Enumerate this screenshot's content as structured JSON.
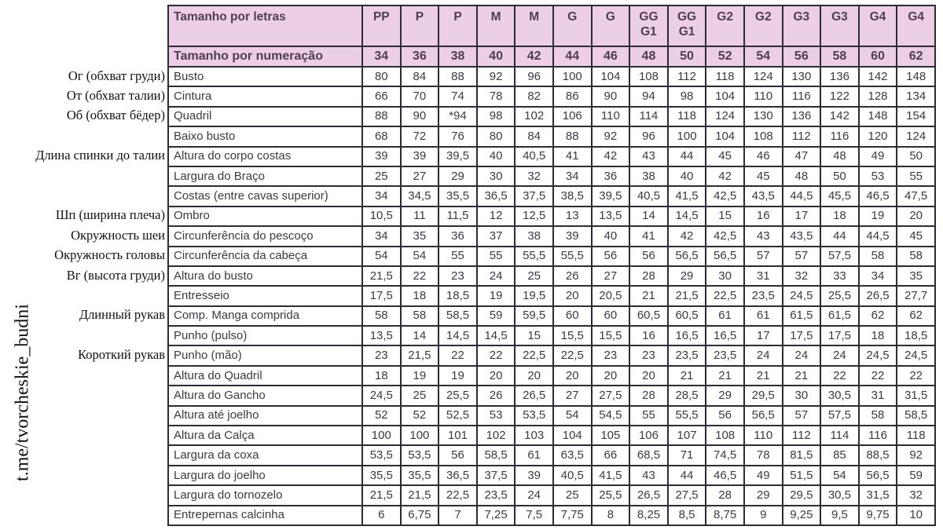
{
  "watermark": "t.me/tvorcheskie_budni",
  "colors": {
    "header_bg": "#eccfe5",
    "border": "#2e2a38"
  },
  "table": {
    "letters_label": "Tamanho por letras",
    "letters": [
      "PP",
      "P",
      "P",
      "M",
      "M",
      "G",
      "G",
      "GG\nG1",
      "GG\nG1",
      "G2",
      "G2",
      "G3",
      "G3",
      "G4",
      "G4"
    ],
    "numbers_label": "Tamanho por numeração",
    "numbers": [
      "34",
      "36",
      "38",
      "40",
      "42",
      "44",
      "46",
      "48",
      "50",
      "52",
      "54",
      "56",
      "58",
      "60",
      "62"
    ],
    "rows": [
      {
        "label": "Busto",
        "ru": "Ог (обхват груди)",
        "values": [
          "80",
          "84",
          "88",
          "92",
          "96",
          "100",
          "104",
          "108",
          "112",
          "118",
          "124",
          "130",
          "136",
          "142",
          "148"
        ]
      },
      {
        "label": "Cintura",
        "ru": "От (обхват талии)",
        "values": [
          "66",
          "70",
          "74",
          "78",
          "82",
          "86",
          "90",
          "94",
          "98",
          "104",
          "110",
          "116",
          "122",
          "128",
          "134"
        ]
      },
      {
        "label": "Quadril",
        "ru": "Об (обхват бёдер)",
        "values": [
          "88",
          "90",
          "*94",
          "98",
          "102",
          "106",
          "110",
          "114",
          "118",
          "124",
          "130",
          "136",
          "142",
          "148",
          "154"
        ]
      },
      {
        "label": "Baixo busto",
        "values": [
          "68",
          "72",
          "76",
          "80",
          "84",
          "88",
          "92",
          "96",
          "100",
          "104",
          "108",
          "112",
          "116",
          "120",
          "124"
        ]
      },
      {
        "label": "Altura do corpo costas",
        "ru": "Длина спинки до талии",
        "values": [
          "39",
          "39",
          "39,5",
          "40",
          "40,5",
          "41",
          "42",
          "43",
          "44",
          "45",
          "46",
          "47",
          "48",
          "49",
          "50"
        ]
      },
      {
        "label": "Largura do Braço",
        "values": [
          "25",
          "27",
          "29",
          "30",
          "32",
          "34",
          "36",
          "38",
          "40",
          "42",
          "45",
          "48",
          "50",
          "53",
          "55"
        ]
      },
      {
        "label": "Costas (entre cavas superior)",
        "values": [
          "34",
          "34,5",
          "35,5",
          "36,5",
          "37,5",
          "38,5",
          "39,5",
          "40,5",
          "41,5",
          "42,5",
          "43,5",
          "44,5",
          "45,5",
          "46,5",
          "47,5"
        ]
      },
      {
        "label": "Ombro",
        "ru": "Шп (ширина плеча)",
        "values": [
          "10,5",
          "11",
          "11,5",
          "12",
          "12,5",
          "13",
          "13,5",
          "14",
          "14,5",
          "15",
          "16",
          "17",
          "18",
          "19",
          "20"
        ]
      },
      {
        "label": "Circunferência do pescoço",
        "ru": "Окружность шеи",
        "values": [
          "34",
          "35",
          "36",
          "37",
          "38",
          "39",
          "40",
          "41",
          "42",
          "42,5",
          "43",
          "43,5",
          "44",
          "44,5",
          "45"
        ]
      },
      {
        "label": "Circunferência da cabeça",
        "ru": "Окружность головы",
        "values": [
          "54",
          "54",
          "55",
          "55",
          "55,5",
          "55,5",
          "56",
          "56",
          "56,5",
          "56,5",
          "57",
          "57",
          "57,5",
          "58",
          "58"
        ]
      },
      {
        "label": "Altura do busto",
        "ru": "Вг (высота груди)",
        "values": [
          "21,5",
          "22",
          "23",
          "24",
          "25",
          "26",
          "27",
          "28",
          "29",
          "30",
          "31",
          "32",
          "33",
          "34",
          "35"
        ]
      },
      {
        "label": "Entresseio",
        "values": [
          "17,5",
          "18",
          "18,5",
          "19",
          "19,5",
          "20",
          "20,5",
          "21",
          "21,5",
          "22,5",
          "23,5",
          "24,5",
          "25,5",
          "26,5",
          "27,7"
        ]
      },
      {
        "label": "Comp. Manga comprida",
        "ru": "Длинный рукав",
        "values": [
          "58",
          "58",
          "58,5",
          "59",
          "59,5",
          "60",
          "60",
          "60,5",
          "60,5",
          "61",
          "61",
          "61,5",
          "61,5",
          "62",
          "62"
        ]
      },
      {
        "label": "Punho (pulso)",
        "values": [
          "13,5",
          "14",
          "14,5",
          "14,5",
          "15",
          "15,5",
          "15,5",
          "16",
          "16,5",
          "16,5",
          "17",
          "17,5",
          "17,5",
          "18",
          "18,5"
        ]
      },
      {
        "label": "Punho (mão)",
        "ru": "Короткий рукав",
        "values": [
          "23",
          "21,5",
          "22",
          "22",
          "22,5",
          "22,5",
          "23",
          "23",
          "23,5",
          "23,5",
          "24",
          "24",
          "24",
          "24,5",
          "24,5"
        ]
      },
      {
        "label": "Altura do Quadril",
        "values": [
          "18",
          "19",
          "19",
          "20",
          "20",
          "20",
          "20",
          "20",
          "21",
          "21",
          "21",
          "21",
          "22",
          "22",
          "22"
        ]
      },
      {
        "label": "Altura do Gancho",
        "values": [
          "24,5",
          "25",
          "25,5",
          "26",
          "26,5",
          "27",
          "27,5",
          "28",
          "28,5",
          "29",
          "29,5",
          "30",
          "30,5",
          "31",
          "31,5"
        ]
      },
      {
        "label": "Altura até joelho",
        "values": [
          "52",
          "52",
          "52,5",
          "53",
          "53,5",
          "54",
          "54,5",
          "55",
          "55,5",
          "56",
          "56,5",
          "57",
          "57,5",
          "58",
          "58,5"
        ]
      },
      {
        "label": "Altura da Calça",
        "values": [
          "100",
          "100",
          "101",
          "102",
          "103",
          "104",
          "105",
          "106",
          "107",
          "108",
          "110",
          "112",
          "114",
          "116",
          "118"
        ]
      },
      {
        "label": "Largura da coxa",
        "values": [
          "53,5",
          "53,5",
          "56",
          "58,5",
          "61",
          "63,5",
          "66",
          "68,5",
          "71",
          "74,5",
          "78",
          "81,5",
          "85",
          "88,5",
          "92"
        ]
      },
      {
        "label": "Largura do joelho",
        "values": [
          "35,5",
          "35,5",
          "36,5",
          "37,5",
          "39",
          "40,5",
          "41,5",
          "43",
          "44",
          "46,5",
          "49",
          "51,5",
          "54",
          "56,5",
          "59"
        ]
      },
      {
        "label": "Largura do tornozelo",
        "values": [
          "21,5",
          "21,5",
          "22,5",
          "23,5",
          "24",
          "25",
          "25,5",
          "26,5",
          "27,5",
          "28",
          "29",
          "29,5",
          "30,5",
          "31,5",
          "32"
        ]
      },
      {
        "label": "Entrepernas calcinha",
        "values": [
          "6",
          "6,75",
          "7",
          "7,25",
          "7,5",
          "7,75",
          "8",
          "8,25",
          "8,5",
          "8,75",
          "9",
          "9,25",
          "9,5",
          "9,75",
          "10"
        ]
      }
    ]
  }
}
